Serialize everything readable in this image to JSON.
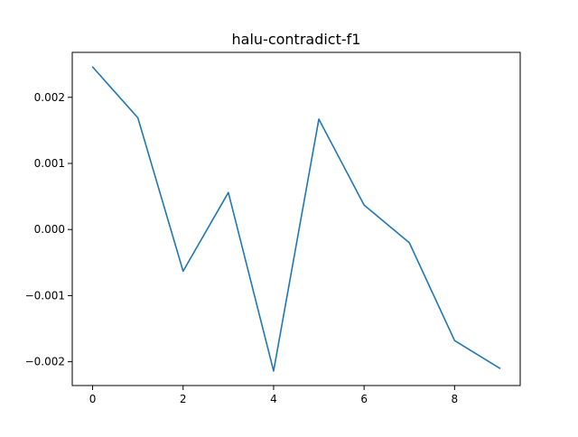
{
  "chart_data": {
    "type": "line",
    "title": "halu-contradict-f1",
    "xlabel": "",
    "ylabel": "",
    "x": [
      0,
      1,
      2,
      3,
      4,
      5,
      6,
      7,
      8,
      9
    ],
    "series": [
      {
        "values": [
          0.00246,
          0.00169,
          -0.00063,
          0.00056,
          -0.00214,
          0.00167,
          0.00037,
          -0.0002,
          -0.00168,
          -0.0021
        ],
        "color": "#1f77b4"
      }
    ],
    "xlim": [
      -0.45,
      9.45
    ],
    "ylim": [
      -0.00236,
      0.00268
    ],
    "xticks": [
      0,
      2,
      4,
      6,
      8
    ],
    "xtick_labels": [
      "0",
      "2",
      "4",
      "6",
      "8"
    ],
    "yticks": [
      -0.002,
      -0.001,
      0.0,
      0.001,
      0.002
    ],
    "ytick_labels": [
      "−0.002",
      "−0.001",
      "0.000",
      "0.001",
      "0.002"
    ],
    "grid": false,
    "legend": "none"
  }
}
